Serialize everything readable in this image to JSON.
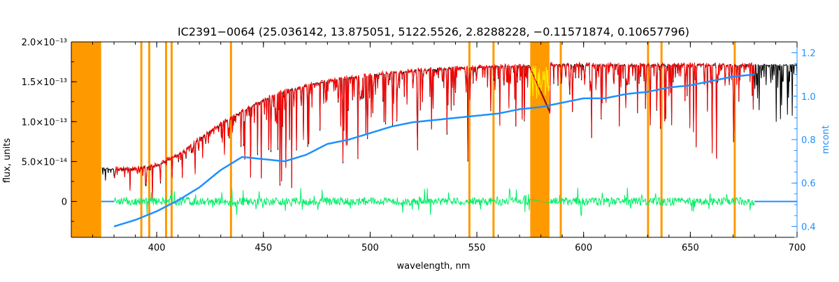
{
  "chart_data": {
    "type": "line",
    "title": "IC2391−0064    (25.036142, 13.875051, 5122.5526, 2.8288228, −0.11571874, 0.10657796)",
    "xlabel": "wavelength, nm",
    "ylabel": "flux, units",
    "y2label": "mcont",
    "xlim": [
      360,
      700
    ],
    "ylim": [
      -4.5e-14,
      2e-13
    ],
    "y2lim": [
      0.35,
      1.25
    ],
    "x_ticks": [
      {
        "v": 400,
        "label": "400"
      },
      {
        "v": 450,
        "label": "450"
      },
      {
        "v": 500,
        "label": "500"
      },
      {
        "v": 550,
        "label": "550"
      },
      {
        "v": 600,
        "label": "600"
      },
      {
        "v": 650,
        "label": "650"
      },
      {
        "v": 700,
        "label": "700"
      }
    ],
    "y_ticks": [
      {
        "v": 0,
        "label": "0"
      },
      {
        "v": 5e-14,
        "label": "5.0×10⁻¹⁴"
      },
      {
        "v": 1e-13,
        "label": "1.0×10⁻¹³"
      },
      {
        "v": 1.5e-13,
        "label": "1.5×10⁻¹³"
      },
      {
        "v": 2e-13,
        "label": "2.0×10⁻¹³"
      }
    ],
    "y2_ticks": [
      {
        "v": 0.4,
        "label": "0.4"
      },
      {
        "v": 0.6,
        "label": "0.6"
      },
      {
        "v": 0.8,
        "label": "0.8"
      },
      {
        "v": 1.0,
        "label": "1.0"
      },
      {
        "v": 1.2,
        "label": "1.2"
      }
    ],
    "masked_regions_nm": [
      [
        360,
        374
      ],
      [
        575,
        584
      ]
    ],
    "masked_lines_nm": [
      392.8,
      396.5,
      404.4,
      407.0,
      434.8,
      546.5,
      557.8,
      589.3,
      630.2,
      636.5,
      670.8
    ],
    "observed_continuum_shape": {
      "x": [
        374,
        380,
        390,
        400,
        410,
        420,
        430,
        440,
        450,
        460,
        470,
        480,
        490,
        500,
        510,
        520,
        530,
        540,
        550,
        560,
        570,
        580,
        590,
        600,
        610,
        620,
        630,
        640,
        650,
        660,
        670,
        680
      ],
      "y": [
        4.2e-14,
        4e-14,
        4.2e-14,
        4.5e-14,
        5.8e-14,
        7.8e-14,
        9.7e-14,
        1.13e-13,
        1.27e-13,
        1.38e-13,
        1.45e-13,
        1.51e-13,
        1.55e-13,
        1.58e-13,
        1.61e-13,
        1.64e-13,
        1.66e-13,
        1.67e-13,
        1.68e-13,
        1.69e-13,
        1.7e-13,
        1.71e-13,
        1.71e-13,
        1.71e-13,
        1.71e-13,
        1.71e-13,
        1.71e-13,
        1.71e-13,
        1.71e-13,
        1.71e-13,
        1.71e-13,
        1.71e-13
      ]
    },
    "mcont": {
      "x": [
        380,
        390,
        400,
        410,
        420,
        430,
        440,
        450,
        460,
        470,
        480,
        490,
        500,
        510,
        520,
        530,
        540,
        550,
        560,
        570,
        580,
        590,
        600,
        610,
        620,
        630,
        640,
        650,
        660,
        670,
        680
      ],
      "y": [
        0.4,
        0.43,
        0.47,
        0.52,
        0.58,
        0.66,
        0.72,
        0.71,
        0.7,
        0.73,
        0.78,
        0.8,
        0.83,
        0.86,
        0.88,
        0.89,
        0.9,
        0.91,
        0.92,
        0.94,
        0.95,
        0.97,
        0.99,
        0.99,
        1.01,
        1.02,
        1.04,
        1.05,
        1.07,
        1.09,
        1.1
      ]
    },
    "series": [
      {
        "color": "#000000",
        "xrange": [
          374,
          700
        ],
        "kind": "observed spectrum"
      },
      {
        "color": "#ff0000",
        "xrange": [
          380,
          680
        ],
        "kind": "model spectrum"
      },
      {
        "color": "#00ee66",
        "xrange": [
          380,
          680
        ],
        "kind": "residuals"
      },
      {
        "color": "#1e90ff",
        "kind": "mcont"
      }
    ],
    "colors": {
      "mask": "#ff9900",
      "mask_highlight": "#ffee00",
      "axis2": "#1e90ff",
      "observed": "#000000",
      "model": "#ff0000",
      "residual": "#00ee66",
      "mcont": "#1e90ff"
    }
  }
}
